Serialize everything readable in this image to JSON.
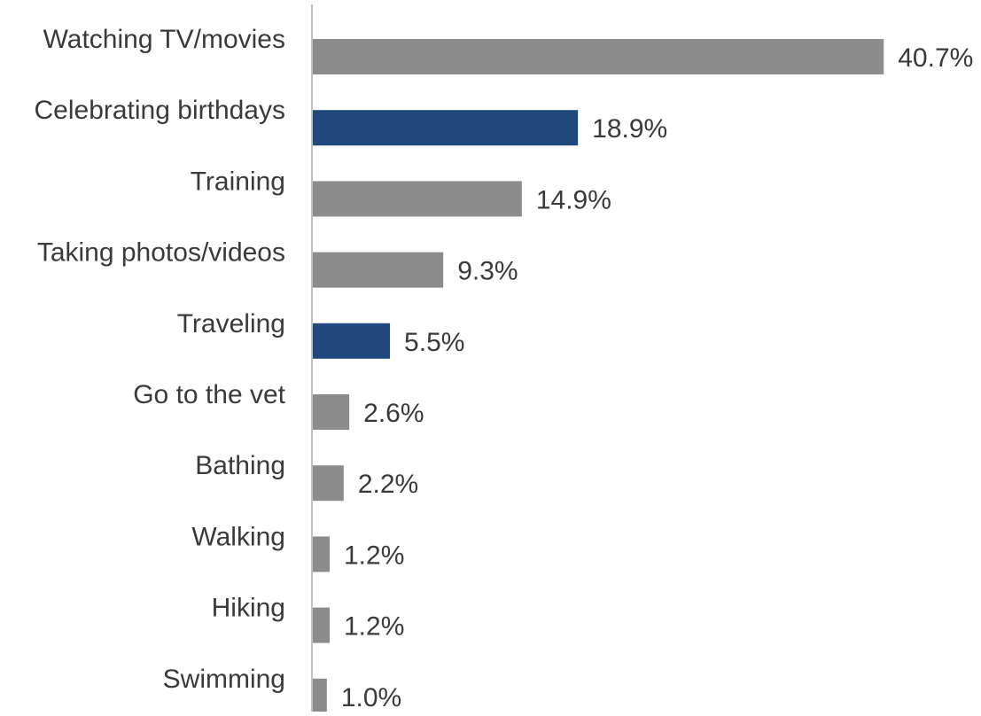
{
  "chart_data": {
    "type": "bar",
    "orientation": "horizontal",
    "title": "",
    "xlabel": "",
    "ylabel": "",
    "categories": [
      "Watching TV/movies",
      "Celebrating birthdays",
      "Training",
      "Taking photos/videos",
      "Traveling",
      "Go to the vet",
      "Bathing",
      "Walking",
      "Hiking",
      "Swimming"
    ],
    "values": [
      40.7,
      18.9,
      14.9,
      9.3,
      5.5,
      2.6,
      2.2,
      1.2,
      1.2,
      1.0
    ],
    "value_labels": [
      "40.7%",
      "18.9%",
      "14.9%",
      "9.3%",
      "5.5%",
      "2.6%",
      "2.2%",
      "1.2%",
      "1.2%",
      "1.0%"
    ],
    "highlighted": [
      false,
      true,
      false,
      false,
      true,
      false,
      false,
      false,
      false,
      false
    ],
    "xlim": [
      0,
      41
    ],
    "grid": false,
    "legend": "none",
    "colors": {
      "default_bar": "#8c8c8c",
      "highlight_bar": "#1f497d",
      "axis": "#bfbfbf",
      "text": "#3a3a3a"
    }
  }
}
